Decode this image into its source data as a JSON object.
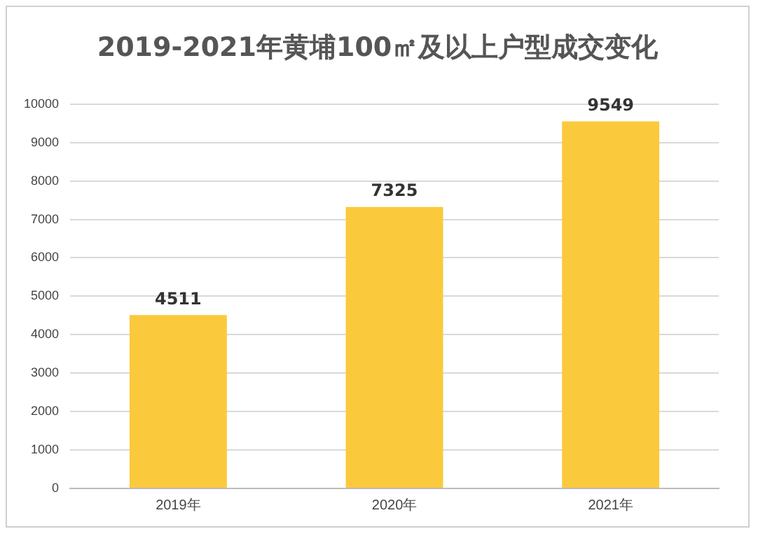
{
  "chart_data": {
    "type": "bar",
    "title": "2019-2021年黄埔100㎡及以上户型成交变化",
    "categories": [
      "2019年",
      "2020年",
      "2021年"
    ],
    "values": [
      4511,
      7325,
      9549
    ],
    "color": "#fbc93c",
    "ylim": [
      0,
      10000
    ],
    "yticks": [
      0,
      1000,
      2000,
      3000,
      4000,
      5000,
      6000,
      7000,
      8000,
      9000,
      10000
    ],
    "grid": "y",
    "data_labels": true,
    "legend": false
  }
}
